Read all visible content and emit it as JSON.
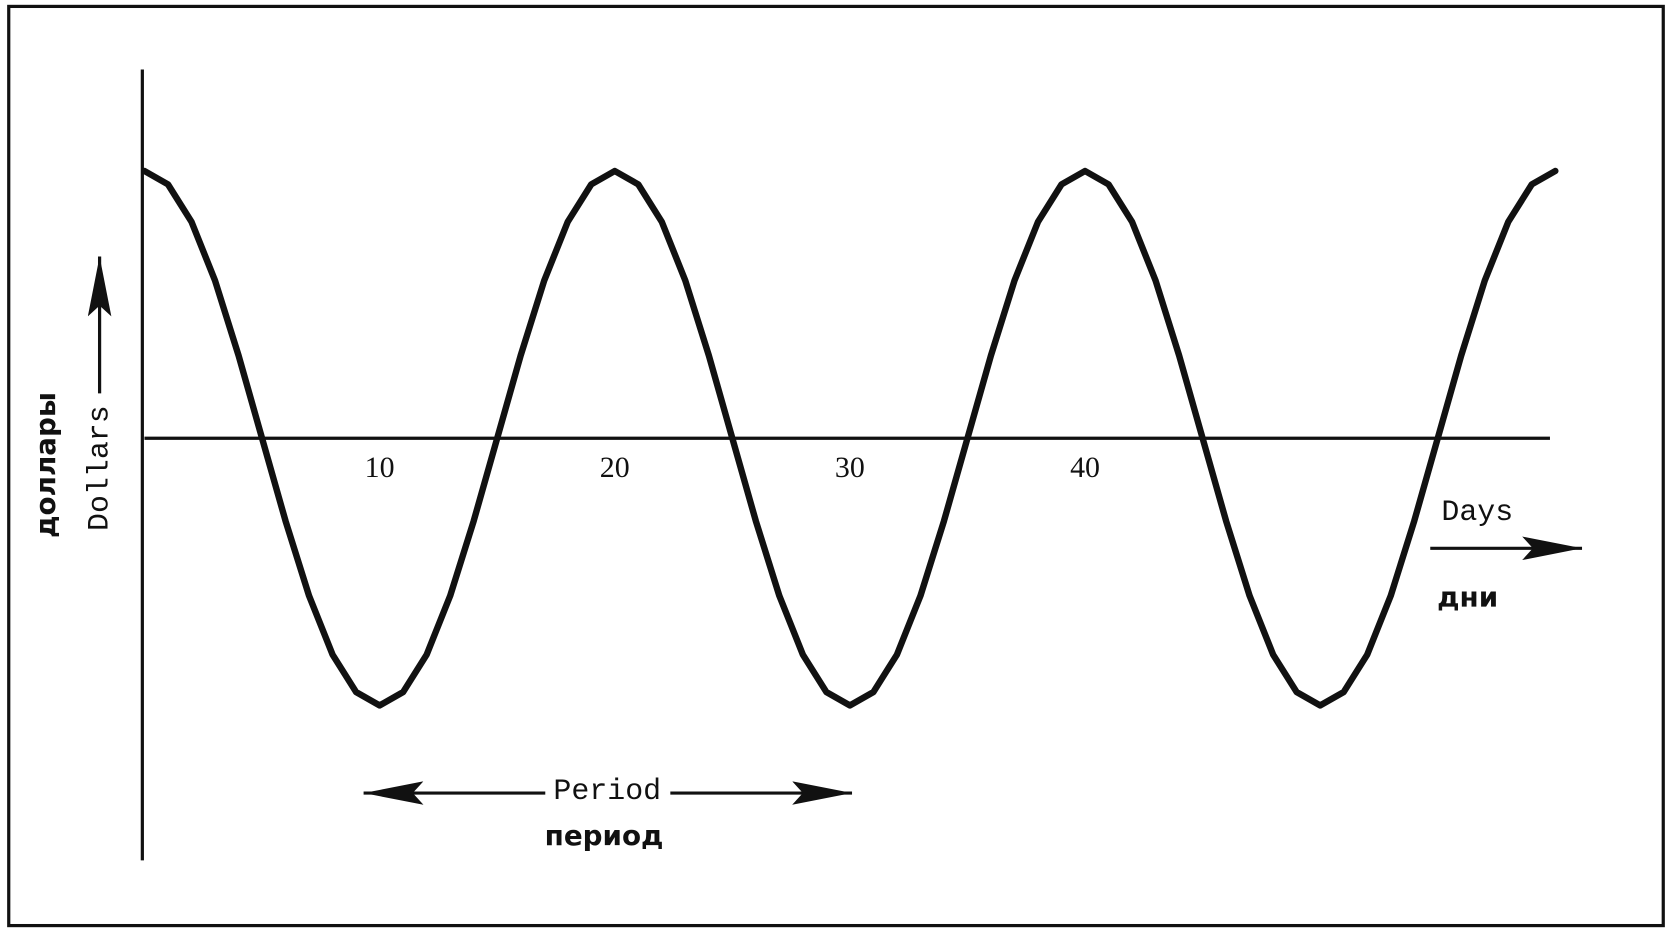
{
  "chart_data": {
    "type": "line",
    "y_label": "Dollars",
    "y_label_ru": "доллары",
    "x_label": "Days",
    "x_label_ru": "дни",
    "annotation": "Period",
    "annotation_ru": "период",
    "x": [
      0,
      1,
      2,
      3,
      4,
      5,
      6,
      7,
      8,
      9,
      10,
      11,
      12,
      13,
      14,
      15,
      16,
      17,
      18,
      19,
      20,
      21,
      22,
      23,
      24,
      25,
      26,
      27,
      28,
      29,
      30,
      31,
      32,
      33,
      34,
      35,
      36,
      37,
      38,
      39,
      40,
      41,
      42,
      43,
      44,
      45,
      46,
      47,
      48,
      49,
      50,
      51,
      52,
      53,
      54,
      55,
      56,
      57,
      58,
      59,
      60
    ],
    "series": [
      {
        "color": "#111111",
        "values": [
          1,
          0.95,
          0.81,
          0.59,
          0.31,
          0,
          -0.31,
          -0.59,
          -0.81,
          -0.95,
          -1,
          -0.95,
          -0.81,
          -0.59,
          -0.31,
          0,
          0.31,
          0.59,
          0.81,
          0.95,
          1,
          0.95,
          0.81,
          0.59,
          0.31,
          0,
          -0.31,
          -0.59,
          -0.81,
          -0.95,
          -1,
          -0.95,
          -0.81,
          -0.59,
          -0.31,
          0,
          0.31,
          0.59,
          0.81,
          0.95,
          1,
          0.95,
          0.81,
          0.59,
          0.31,
          0,
          -0.31,
          -0.59,
          -0.81,
          -0.95,
          -1,
          -0.95,
          -0.81,
          -0.59,
          -0.31,
          0,
          0.31,
          0.59,
          0.81,
          0.95,
          1
        ]
      }
    ],
    "xlim": [
      0,
      60
    ],
    "ylim": [
      -1.58,
      1.38
    ],
    "xticks": [
      10,
      20,
      30,
      40
    ]
  }
}
